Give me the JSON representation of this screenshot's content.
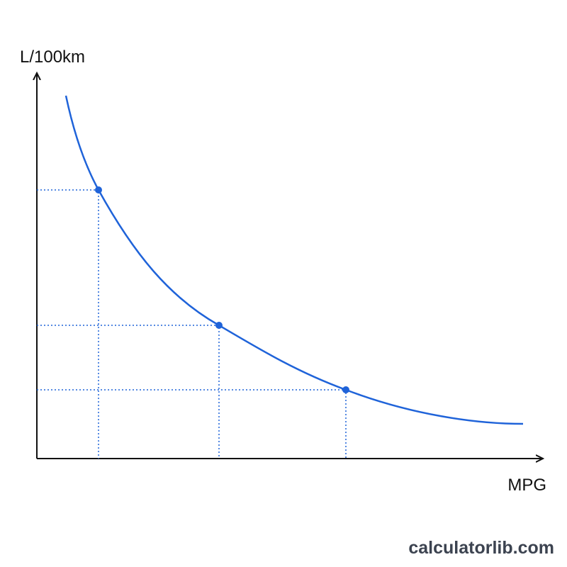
{
  "y_axis_label": "L/100km",
  "x_axis_label": "MPG",
  "watermark": "calculatorlib.com"
}
